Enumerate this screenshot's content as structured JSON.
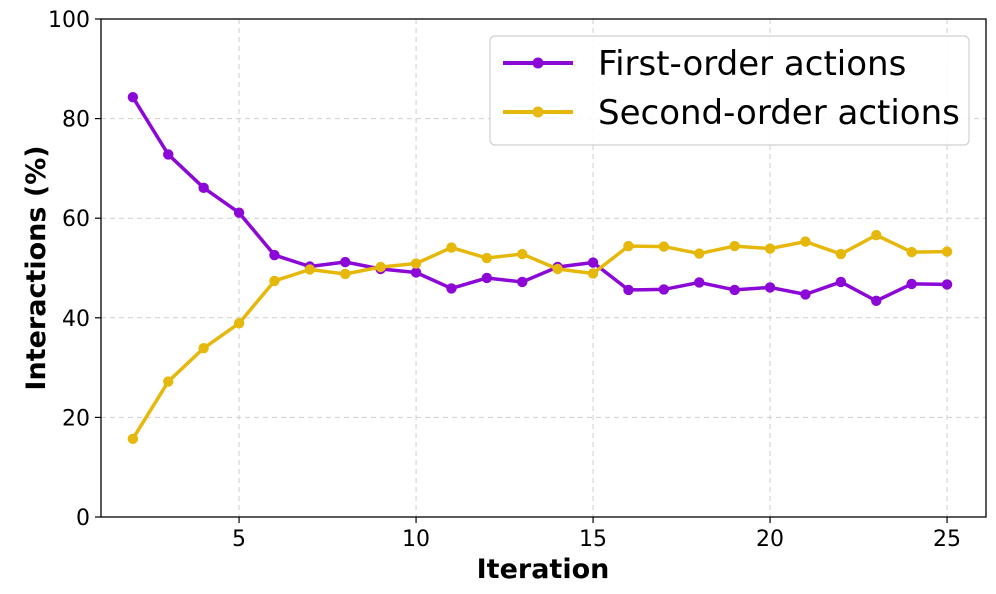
{
  "chart_data": {
    "type": "line",
    "title": "",
    "xlabel": "Iteration",
    "ylabel": "Interactions (%)",
    "xlim": [
      1.1,
      26.1
    ],
    "ylim": [
      0,
      100
    ],
    "xticks": [
      5,
      10,
      15,
      20,
      25
    ],
    "yticks": [
      0,
      20,
      40,
      60,
      80,
      100
    ],
    "grid": true,
    "legend_position": "top-right",
    "x": [
      2,
      3,
      4,
      5,
      6,
      7,
      8,
      9,
      10,
      11,
      12,
      13,
      14,
      15,
      16,
      17,
      18,
      19,
      20,
      21,
      22,
      23,
      24,
      25
    ],
    "series": [
      {
        "name": "First-order actions",
        "color": "#8b08d6",
        "values": [
          84.3,
          72.8,
          66.1,
          61.1,
          52.6,
          50.3,
          51.2,
          49.8,
          49.1,
          45.9,
          48.0,
          47.2,
          50.2,
          51.1,
          45.6,
          45.7,
          47.1,
          45.6,
          46.1,
          44.7,
          47.2,
          43.4,
          46.8,
          46.7
        ]
      },
      {
        "name": "Second-order actions",
        "color": "#e6b80c",
        "values": [
          15.7,
          27.2,
          33.9,
          38.9,
          47.4,
          49.7,
          48.8,
          50.2,
          50.9,
          54.1,
          52.0,
          52.8,
          49.8,
          48.9,
          54.4,
          54.3,
          52.9,
          54.4,
          53.9,
          55.3,
          52.8,
          56.6,
          53.2,
          53.3
        ]
      }
    ]
  }
}
